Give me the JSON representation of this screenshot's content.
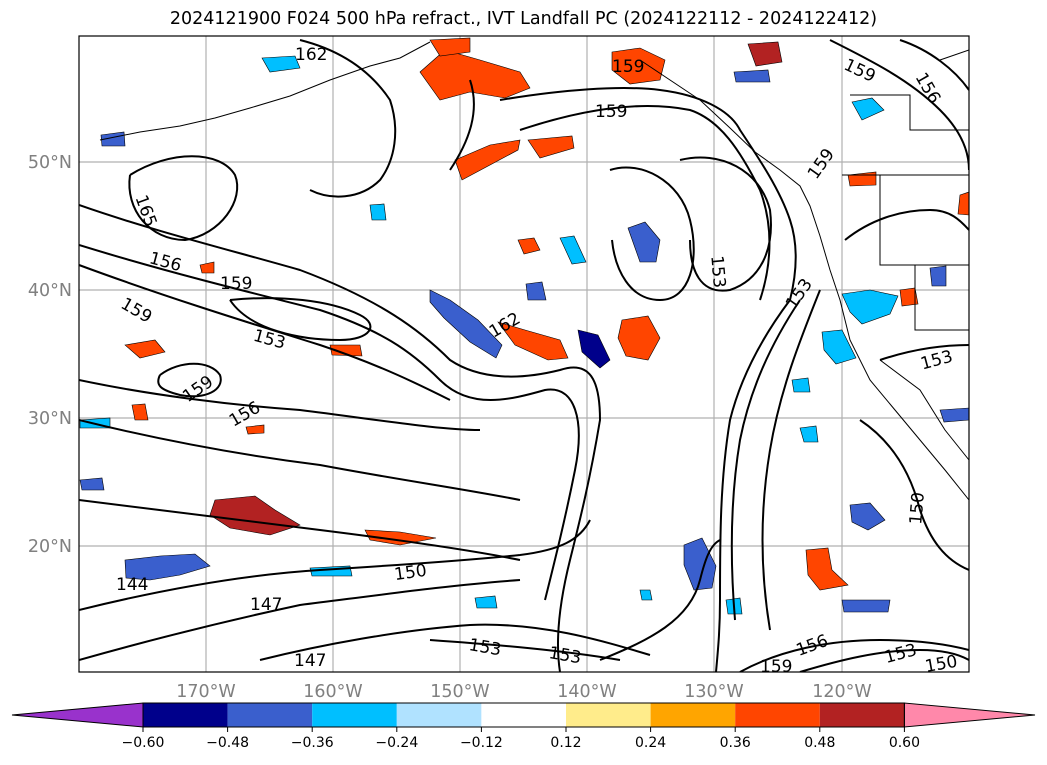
{
  "title": "2024121900 F024 500 hPa refract., IVT Landfall PC (2024122112 - 2024122412)",
  "map": {
    "lat_labels": [
      "50°N",
      "40°N",
      "30°N",
      "20°N"
    ],
    "lon_labels": [
      "170°W",
      "160°W",
      "150°W",
      "140°W",
      "130°W",
      "120°W"
    ],
    "contour_labels": [
      "162",
      "159",
      "156",
      "159",
      "153",
      "159",
      "165",
      "156",
      "159",
      "159",
      "153",
      "162",
      "159",
      "156",
      "153",
      "153",
      "150",
      "144",
      "147",
      "147",
      "153",
      "153",
      "156",
      "153",
      "150",
      "159",
      "150",
      "159"
    ]
  },
  "colorbar": {
    "ticks": [
      "−0.60",
      "−0.48",
      "−0.36",
      "−0.24",
      "−0.12",
      "0.12",
      "0.24",
      "0.36",
      "0.48",
      "0.60"
    ],
    "colors": [
      "#9932cc",
      "#00008b",
      "#3a5fcd",
      "#00bfff",
      "#b0e2ff",
      "#ffffff",
      "#ffec8b",
      "#ffa500",
      "#ff4500",
      "#b22222",
      "#ff88aa"
    ]
  }
}
